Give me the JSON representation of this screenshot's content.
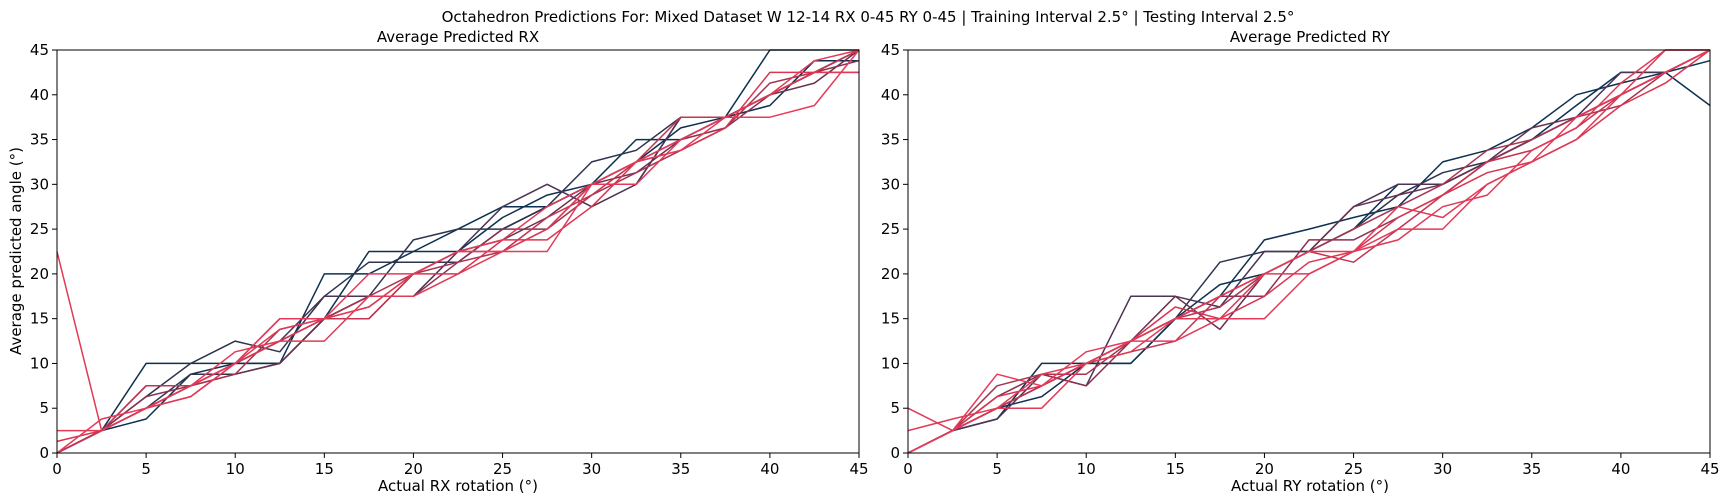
{
  "figure": {
    "suptitle": "Octahedron Predictions For: Mixed Dataset W 12-14 RX 0-45 RY 0-45 | Training Interval 2.5° | Testing Interval 2.5°"
  },
  "colors": {
    "series_palette": [
      "#0d3150",
      "#2e344e",
      "#4b3455",
      "#69314f",
      "#8a3152",
      "#a73450",
      "#c43450",
      "#dc3450",
      "#e8395a",
      "#e13a56"
    ],
    "axis": "#000000",
    "background": "#ffffff"
  },
  "chart_data": [
    {
      "type": "line",
      "title": "Average Predicted RX",
      "xlabel": "Actual RX rotation (°)",
      "ylabel": "Average predicted angle (°)",
      "xlim": [
        0,
        45
      ],
      "ylim": [
        0,
        45
      ],
      "xticks": [
        0,
        5,
        10,
        15,
        20,
        25,
        30,
        35,
        40,
        45
      ],
      "yticks": [
        0,
        5,
        10,
        15,
        20,
        25,
        30,
        35,
        40,
        45
      ],
      "grid": false,
      "legend": "none",
      "x": [
        0,
        2.5,
        5,
        7.5,
        10,
        12.5,
        15,
        17.5,
        20,
        22.5,
        25,
        27.5,
        30,
        32.5,
        35,
        37.5,
        40,
        42.5,
        45
      ],
      "series": [
        {
          "color_index": 0,
          "values": [
            0,
            2.5,
            3.8,
            8.8,
            10,
            10,
            20,
            20,
            22.5,
            25,
            27.5,
            27.5,
            30,
            32.5,
            36.3,
            37.5,
            45,
            45,
            45
          ]
        },
        {
          "color_index": 0,
          "values": [
            0,
            2.5,
            10,
            10,
            10,
            10,
            15,
            22.5,
            22.5,
            22.5,
            26.3,
            28.8,
            30,
            35,
            35,
            37.5,
            38.8,
            43.8,
            43.8
          ]
        },
        {
          "color_index": 1,
          "values": [
            0,
            2.5,
            6.3,
            10,
            12.5,
            11.3,
            17.5,
            21.3,
            21.3,
            21.3,
            25,
            27.5,
            30,
            30,
            37.5,
            37.5,
            40,
            42.5,
            45
          ]
        },
        {
          "color_index": 1,
          "values": [
            0,
            2.5,
            5,
            8.8,
            8.8,
            10,
            15,
            17.5,
            23.8,
            25,
            25,
            27.5,
            32.5,
            33.8,
            37.5,
            37.5,
            40,
            42.5,
            45
          ]
        },
        {
          "color_index": 2,
          "values": [
            0,
            2.5,
            5,
            7.5,
            10,
            12.5,
            17.5,
            17.5,
            17.5,
            22.5,
            27.5,
            30,
            27.5,
            30,
            37.5,
            37.5,
            40,
            42.5,
            45
          ]
        },
        {
          "color_index": 3,
          "values": [
            0,
            2.5,
            7.5,
            7.5,
            8.8,
            10,
            15,
            15,
            20,
            22.5,
            23.8,
            26.3,
            30,
            31.3,
            35,
            37.5,
            40,
            41.3,
            45
          ]
        },
        {
          "color_index": 4,
          "values": [
            0,
            2.5,
            6.3,
            7.5,
            10,
            12.5,
            15,
            17.5,
            17.5,
            21.3,
            25,
            25,
            30,
            32.5,
            35,
            36.3,
            40,
            42.5,
            43.8
          ]
        },
        {
          "color_index": 5,
          "values": [
            0,
            2.5,
            5,
            7.5,
            8.8,
            13.8,
            15,
            17.5,
            20,
            21.3,
            22.5,
            25,
            28.8,
            31.3,
            33.8,
            36.3,
            41.3,
            42.5,
            45
          ]
        },
        {
          "color_index": 6,
          "values": [
            0,
            2.5,
            7.5,
            7.5,
            10,
            15,
            15,
            15,
            20,
            22.5,
            22.5,
            26.3,
            28.8,
            32.5,
            37.5,
            37.5,
            40,
            42.5,
            45
          ]
        },
        {
          "color_index": 7,
          "values": [
            1.3,
            2.5,
            5,
            6.3,
            10,
            12.5,
            15,
            16.3,
            20,
            20,
            23.8,
            23.8,
            27.5,
            32.5,
            33.8,
            36.3,
            42.5,
            42.5,
            42.5
          ]
        },
        {
          "color_index": 8,
          "values": [
            0,
            3.8,
            5,
            7.5,
            10,
            15,
            15,
            20,
            20,
            22.5,
            22.5,
            22.5,
            30,
            32.5,
            33.8,
            37.5,
            37.5,
            38.8,
            45
          ]
        },
        {
          "color_index": 9,
          "values": [
            22.5,
            2.5,
            5,
            7.5,
            11.3,
            12.5,
            12.5,
            17.5,
            17.5,
            20,
            22.5,
            25,
            30,
            30,
            35,
            37.5,
            40,
            42.5,
            42.5
          ]
        },
        {
          "color_index": 9,
          "values": [
            2.5,
            2.5,
            5,
            6.3,
            10,
            13.8,
            15,
            16.3,
            20,
            22.5,
            23.8,
            27.5,
            30,
            32.5,
            35,
            37.5,
            40,
            43.8,
            45
          ]
        }
      ]
    },
    {
      "type": "line",
      "title": "Average Predicted RY",
      "xlabel": "Actual RY rotation (°)",
      "ylabel": "",
      "xlim": [
        0,
        45
      ],
      "ylim": [
        0,
        45
      ],
      "xticks": [
        0,
        5,
        10,
        15,
        20,
        25,
        30,
        35,
        40,
        45
      ],
      "yticks": [
        0,
        5,
        10,
        15,
        20,
        25,
        30,
        35,
        40,
        45
      ],
      "grid": false,
      "legend": "none",
      "x": [
        0,
        2.5,
        5,
        7.5,
        10,
        12.5,
        15,
        17.5,
        20,
        22.5,
        25,
        27.5,
        30,
        32.5,
        35,
        37.5,
        40,
        42.5,
        45
      ],
      "series": [
        {
          "color_index": 0,
          "values": [
            0,
            2.5,
            5,
            6.3,
            10,
            10,
            15,
            17.5,
            23.8,
            25,
            26.3,
            27.5,
            32.5,
            33.8,
            36.3,
            40,
            41.3,
            42.5,
            43.8
          ]
        },
        {
          "color_index": 0,
          "values": [
            0,
            2.5,
            3.8,
            10,
            10,
            10,
            15,
            18.8,
            20,
            22.5,
            25,
            30,
            30,
            32.5,
            35,
            38.8,
            42.5,
            42.5,
            38.8
          ]
        },
        {
          "color_index": 1,
          "values": [
            0,
            2.5,
            5,
            7.5,
            10,
            12.5,
            15,
            21.3,
            22.5,
            22.5,
            25,
            28.8,
            31.3,
            32.5,
            35,
            37.5,
            40,
            42.5,
            45
          ]
        },
        {
          "color_index": 2,
          "values": [
            0,
            2.5,
            3.8,
            8.8,
            7.5,
            17.5,
            17.5,
            16.3,
            22.5,
            22.5,
            27.5,
            30,
            30,
            32.5,
            35,
            37.5,
            42.5,
            42.5,
            45
          ]
        },
        {
          "color_index": 3,
          "values": [
            0,
            2.5,
            5,
            7.5,
            10,
            12.5,
            17.5,
            13.8,
            20,
            22.5,
            27.5,
            28.8,
            30,
            32.5,
            36.3,
            37.5,
            40,
            42.5,
            45
          ]
        },
        {
          "color_index": 4,
          "values": [
            0,
            2.5,
            6.3,
            8.8,
            7.5,
            12.5,
            15,
            17.5,
            17.5,
            23.8,
            23.8,
            26.3,
            28.8,
            32.5,
            35,
            37.5,
            40,
            42.5,
            45
          ]
        },
        {
          "color_index": 5,
          "values": [
            0,
            2.5,
            7.5,
            8.8,
            8.8,
            12.5,
            15,
            16.3,
            20,
            22.5,
            25,
            27.5,
            30,
            33.8,
            35,
            37.5,
            38.8,
            42.5,
            45
          ]
        },
        {
          "color_index": 6,
          "values": [
            0,
            2.5,
            5,
            7.5,
            10,
            11.3,
            12.5,
            17.5,
            20,
            22.5,
            21.3,
            25,
            28.8,
            32.5,
            33.8,
            36.3,
            40,
            42.5,
            45
          ]
        },
        {
          "color_index": 7,
          "values": [
            0,
            2.5,
            6.3,
            7.5,
            10,
            12.5,
            16.3,
            15,
            17.5,
            21.3,
            22.5,
            26.3,
            28.8,
            31.3,
            32.5,
            35,
            38.8,
            41.3,
            45
          ]
        },
        {
          "color_index": 8,
          "values": [
            0,
            2.5,
            8.8,
            7.5,
            11.3,
            12.5,
            12.5,
            15,
            15,
            20,
            22.5,
            25,
            25,
            30,
            32.5,
            37.5,
            40,
            42.5,
            45
          ]
        },
        {
          "color_index": 9,
          "values": [
            5,
            2.5,
            5,
            5,
            10,
            12.5,
            15,
            17.5,
            20,
            20,
            22.5,
            23.8,
            27.5,
            28.8,
            33.8,
            36.3,
            41.3,
            45,
            45
          ]
        },
        {
          "color_index": 9,
          "values": [
            2.5,
            3.8,
            5,
            8.8,
            10,
            11.3,
            15,
            15,
            20,
            22.5,
            22.5,
            27.5,
            26.3,
            30,
            32.5,
            35,
            40,
            45,
            45
          ]
        }
      ]
    }
  ]
}
